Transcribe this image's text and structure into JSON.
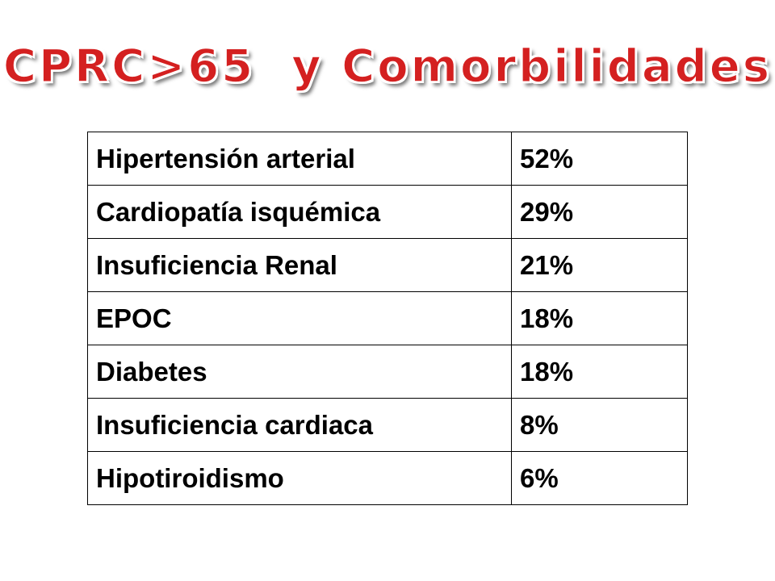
{
  "header": {
    "title": "CPRC>65  y Comorbilidades"
  },
  "table": {
    "rows": [
      [
        "Hipertensión arterial",
        "52%"
      ],
      [
        "Cardiopatía isquémica",
        "29%"
      ],
      [
        "Insuficiencia Renal",
        "21%"
      ],
      [
        "EPOC",
        "18%"
      ],
      [
        "Diabetes",
        "18%"
      ],
      [
        "Insuficiencia cardiaca",
        "8%"
      ],
      [
        "Hipotiroidismo",
        "6%"
      ]
    ]
  }
}
